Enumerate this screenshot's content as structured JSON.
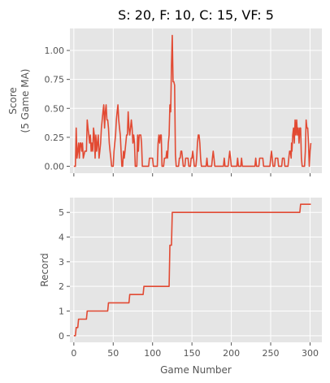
{
  "chart_data": [
    {
      "type": "line",
      "title": "S: 20, F: 10, C: 15, VF: 5",
      "xlabel": "",
      "ylabel": [
        "Score",
        "(5 Game MA)"
      ],
      "xlim": [
        -5,
        315
      ],
      "ylim": [
        -0.06,
        1.19
      ],
      "xticks": [
        0,
        50,
        100,
        150,
        200,
        250,
        300
      ],
      "show_x_tick_labels": false,
      "yticks": [
        0.0,
        0.25,
        0.5,
        0.75,
        1.0
      ],
      "ytick_labels": [
        "0.00",
        "0.25",
        "0.50",
        "0.75",
        "1.00"
      ],
      "grid": true,
      "series": [
        {
          "color": "#E24A33",
          "points": [
            [
              0,
              0.0
            ],
            [
              2,
              0.0
            ],
            [
              3,
              0.33
            ],
            [
              4,
              0.07
            ],
            [
              5,
              0.13
            ],
            [
              6,
              0.2
            ],
            [
              7,
              0.07
            ],
            [
              8,
              0.2
            ],
            [
              9,
              0.2
            ],
            [
              10,
              0.13
            ],
            [
              11,
              0.2
            ],
            [
              12,
              0.07
            ],
            [
              14,
              0.13
            ],
            [
              16,
              0.13
            ],
            [
              17,
              0.4
            ],
            [
              18,
              0.33
            ],
            [
              19,
              0.27
            ],
            [
              20,
              0.2
            ],
            [
              21,
              0.27
            ],
            [
              22,
              0.13
            ],
            [
              23,
              0.2
            ],
            [
              24,
              0.13
            ],
            [
              25,
              0.33
            ],
            [
              26,
              0.27
            ],
            [
              27,
              0.07
            ],
            [
              28,
              0.27
            ],
            [
              29,
              0.13
            ],
            [
              30,
              0.2
            ],
            [
              31,
              0.27
            ],
            [
              32,
              0.07
            ],
            [
              33,
              0.13
            ],
            [
              34,
              0.2
            ],
            [
              35,
              0.33
            ],
            [
              36,
              0.4
            ],
            [
              37,
              0.47
            ],
            [
              38,
              0.53
            ],
            [
              39,
              0.33
            ],
            [
              40,
              0.47
            ],
            [
              41,
              0.53
            ],
            [
              42,
              0.4
            ],
            [
              43,
              0.4
            ],
            [
              44,
              0.33
            ],
            [
              45,
              0.2
            ],
            [
              46,
              0.13
            ],
            [
              47,
              0.07
            ],
            [
              48,
              0.0
            ],
            [
              50,
              0.0
            ],
            [
              51,
              0.13
            ],
            [
              52,
              0.2
            ],
            [
              53,
              0.27
            ],
            [
              54,
              0.4
            ],
            [
              55,
              0.47
            ],
            [
              56,
              0.53
            ],
            [
              57,
              0.4
            ],
            [
              58,
              0.33
            ],
            [
              59,
              0.27
            ],
            [
              60,
              0.13
            ],
            [
              61,
              0.0
            ],
            [
              62,
              0.0
            ],
            [
              63,
              0.13
            ],
            [
              64,
              0.07
            ],
            [
              65,
              0.13
            ],
            [
              66,
              0.2
            ],
            [
              67,
              0.27
            ],
            [
              68,
              0.27
            ],
            [
              69,
              0.47
            ],
            [
              70,
              0.33
            ],
            [
              71,
              0.27
            ],
            [
              72,
              0.33
            ],
            [
              73,
              0.4
            ],
            [
              74,
              0.33
            ],
            [
              75,
              0.2
            ],
            [
              76,
              0.27
            ],
            [
              77,
              0.2
            ],
            [
              78,
              0.0
            ],
            [
              80,
              0.0
            ],
            [
              81,
              0.27
            ],
            [
              82,
              0.13
            ],
            [
              83,
              0.27
            ],
            [
              84,
              0.27
            ],
            [
              85,
              0.27
            ],
            [
              86,
              0.2
            ],
            [
              87,
              0.0
            ],
            [
              95,
              0.0
            ],
            [
              96,
              0.07
            ],
            [
              100,
              0.07
            ],
            [
              101,
              0.0
            ],
            [
              106,
              0.0
            ],
            [
              107,
              0.2
            ],
            [
              108,
              0.27
            ],
            [
              109,
              0.2
            ],
            [
              110,
              0.27
            ],
            [
              111,
              0.27
            ],
            [
              112,
              0.0
            ],
            [
              114,
              0.0
            ],
            [
              115,
              0.07
            ],
            [
              117,
              0.07
            ],
            [
              118,
              0.13
            ],
            [
              119,
              0.07
            ],
            [
              120,
              0.2
            ],
            [
              121,
              0.27
            ],
            [
              122,
              0.53
            ],
            [
              123,
              0.47
            ],
            [
              124,
              0.87
            ],
            [
              125,
              1.13
            ],
            [
              126,
              0.73
            ],
            [
              127,
              0.73
            ],
            [
              128,
              0.7
            ],
            [
              129,
              0.1
            ],
            [
              130,
              0.0
            ],
            [
              133,
              0.0
            ],
            [
              134,
              0.07
            ],
            [
              135,
              0.07
            ],
            [
              136,
              0.13
            ],
            [
              137,
              0.13
            ],
            [
              138,
              0.07
            ],
            [
              139,
              0.0
            ],
            [
              141,
              0.0
            ],
            [
              142,
              0.07
            ],
            [
              145,
              0.07
            ],
            [
              146,
              0.0
            ],
            [
              148,
              0.0
            ],
            [
              149,
              0.07
            ],
            [
              150,
              0.07
            ],
            [
              151,
              0.13
            ],
            [
              152,
              0.07
            ],
            [
              153,
              0.0
            ],
            [
              155,
              0.0
            ],
            [
              156,
              0.07
            ],
            [
              157,
              0.2
            ],
            [
              158,
              0.27
            ],
            [
              159,
              0.27
            ],
            [
              160,
              0.2
            ],
            [
              161,
              0.07
            ],
            [
              162,
              0.0
            ],
            [
              168,
              0.0
            ],
            [
              169,
              0.07
            ],
            [
              170,
              0.0
            ],
            [
              175,
              0.0
            ],
            [
              176,
              0.07
            ],
            [
              177,
              0.13
            ],
            [
              178,
              0.07
            ],
            [
              179,
              0.0
            ],
            [
              190,
              0.0
            ],
            [
              191,
              0.07
            ],
            [
              192,
              0.0
            ],
            [
              196,
              0.0
            ],
            [
              197,
              0.07
            ],
            [
              198,
              0.13
            ],
            [
              199,
              0.07
            ],
            [
              200,
              0.0
            ],
            [
              207,
              0.0
            ],
            [
              208,
              0.07
            ],
            [
              209,
              0.0
            ],
            [
              212,
              0.0
            ],
            [
              213,
              0.07
            ],
            [
              214,
              0.0
            ],
            [
              230,
              0.0
            ],
            [
              231,
              0.07
            ],
            [
              232,
              0.0
            ],
            [
              235,
              0.0
            ],
            [
              236,
              0.07
            ],
            [
              240,
              0.07
            ],
            [
              241,
              0.0
            ],
            [
              249,
              0.0
            ],
            [
              250,
              0.07
            ],
            [
              251,
              0.13
            ],
            [
              252,
              0.07
            ],
            [
              253,
              0.0
            ],
            [
              255,
              0.0
            ],
            [
              256,
              0.07
            ],
            [
              259,
              0.07
            ],
            [
              260,
              0.0
            ],
            [
              264,
              0.0
            ],
            [
              265,
              0.07
            ],
            [
              267,
              0.07
            ],
            [
              268,
              0.0
            ],
            [
              272,
              0.0
            ],
            [
              273,
              0.07
            ],
            [
              274,
              0.13
            ],
            [
              275,
              0.13
            ],
            [
              276,
              0.07
            ],
            [
              276.5,
              0.2
            ],
            [
              277,
              0.13
            ],
            [
              278,
              0.27
            ],
            [
              279,
              0.33
            ],
            [
              280,
              0.2
            ],
            [
              281,
              0.4
            ],
            [
              282,
              0.27
            ],
            [
              283,
              0.4
            ],
            [
              284,
              0.27
            ],
            [
              285,
              0.33
            ],
            [
              286,
              0.2
            ],
            [
              287,
              0.33
            ],
            [
              288,
              0.33
            ],
            [
              289,
              0.07
            ],
            [
              290,
              0.0
            ],
            [
              293,
              0.0
            ],
            [
              294,
              0.13
            ],
            [
              295,
              0.4
            ],
            [
              296,
              0.33
            ],
            [
              297,
              0.33
            ],
            [
              298,
              0.2
            ],
            [
              299,
              0.0
            ],
            [
              300,
              0.13
            ],
            [
              301,
              0.2
            ]
          ]
        }
      ]
    },
    {
      "type": "line",
      "title": "",
      "xlabel": "Game Number",
      "ylabel": [
        "Record"
      ],
      "xlim": [
        -5,
        315
      ],
      "ylim": [
        -0.27,
        5.6
      ],
      "xticks": [
        0,
        50,
        100,
        150,
        200,
        250,
        300
      ],
      "xtick_labels": [
        "0",
        "50",
        "100",
        "150",
        "200",
        "250",
        "300"
      ],
      "show_x_tick_labels": true,
      "yticks": [
        0,
        1,
        2,
        3,
        4,
        5
      ],
      "ytick_labels": [
        "0",
        "1",
        "2",
        "3",
        "4",
        "5"
      ],
      "grid": true,
      "series": [
        {
          "color": "#E24A33",
          "points": [
            [
              0,
              0.0
            ],
            [
              2,
              0.0
            ],
            [
              3,
              0.33
            ],
            [
              5,
              0.33
            ],
            [
              6,
              0.67
            ],
            [
              16,
              0.67
            ],
            [
              17,
              1.0
            ],
            [
              43,
              1.0
            ],
            [
              44,
              1.33
            ],
            [
              70,
              1.33
            ],
            [
              71,
              1.67
            ],
            [
              88,
              1.67
            ],
            [
              89,
              2.0
            ],
            [
              121,
              2.0
            ],
            [
              122,
              3.67
            ],
            [
              124,
              3.67
            ],
            [
              125,
              5.0
            ],
            [
              287,
              5.0
            ],
            [
              288,
              5.33
            ],
            [
              301,
              5.33
            ]
          ]
        }
      ]
    }
  ]
}
